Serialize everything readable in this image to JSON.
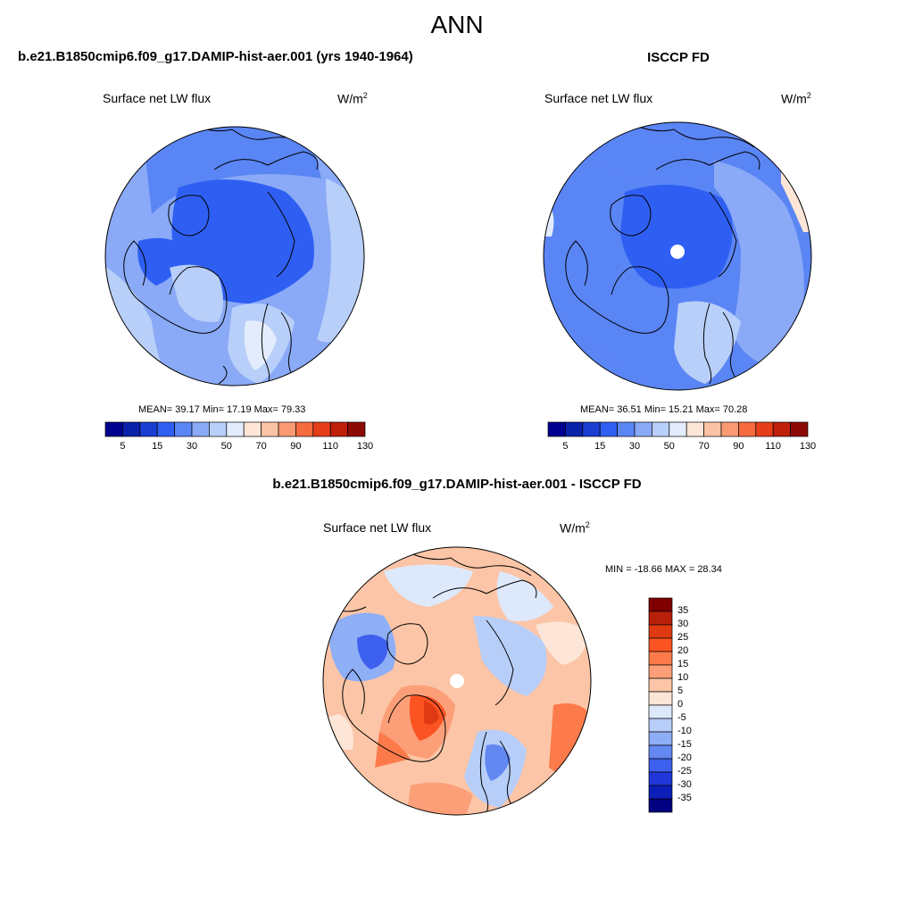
{
  "title": "ANN",
  "panels": [
    {
      "title": "b.e21.B1850cmip6.f09_g17.DAMIP-hist-aer.001 (yrs 1940-1964)",
      "variable": "Surface net LW flux",
      "units": "W/m",
      "units_exp": "2",
      "stats": "MEAN=  39.17  Min=  17.19  Max=  79.33"
    },
    {
      "title": "ISCCP FD",
      "variable": "Surface net LW flux",
      "units": "W/m",
      "units_exp": "2",
      "stats": "MEAN=  36.51  Min=  15.21  Max=  70.28"
    },
    {
      "title": "b.e21.B1850cmip6.f09_g17.DAMIP-hist-aer.001 - ISCCP FD",
      "variable": "Surface net LW flux",
      "units": "W/m",
      "units_exp": "2",
      "stats": "MIN = -18.66 MAX =  28.34"
    }
  ],
  "abs_colorbar": {
    "labels": [
      "5",
      "15",
      "30",
      "50",
      "70",
      "90",
      "110",
      "130"
    ],
    "colors": [
      "#00008e",
      "#0a22a8",
      "#1a3ecf",
      "#2f5ff2",
      "#5a85f5",
      "#8aaaf7",
      "#b8cff9",
      "#e2ecfc",
      "#fde6d6",
      "#fbc3a6",
      "#f99a73",
      "#f56b3f",
      "#e63e1a",
      "#be200c",
      "#8c0a05"
    ]
  },
  "diff_colorbar": {
    "labels": [
      "35",
      "30",
      "25",
      "20",
      "15",
      "10",
      "5",
      "0",
      "-5",
      "-10",
      "-15",
      "-20",
      "-25",
      "-30",
      "-35"
    ],
    "colors": [
      "#800000",
      "#b8200a",
      "#e03a12",
      "#fb5322",
      "#fd7a4a",
      "#fc9f78",
      "#fcc5a7",
      "#fde6d7",
      "#dde9fb",
      "#b7cef8",
      "#8eaef6",
      "#6388f2",
      "#3d60ef",
      "#2036d9",
      "#0b1eb8",
      "#000080"
    ]
  }
}
